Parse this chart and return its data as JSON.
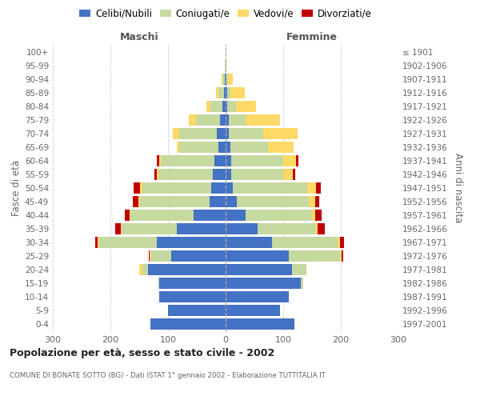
{
  "age_groups": [
    "0-4",
    "5-9",
    "10-14",
    "15-19",
    "20-24",
    "25-29",
    "30-34",
    "35-39",
    "40-44",
    "45-49",
    "50-54",
    "55-59",
    "60-64",
    "65-69",
    "70-74",
    "75-79",
    "80-84",
    "85-89",
    "90-94",
    "95-99",
    "100+"
  ],
  "birth_years": [
    "1997-2001",
    "1992-1996",
    "1987-1991",
    "1982-1986",
    "1977-1981",
    "1972-1976",
    "1967-1971",
    "1962-1966",
    "1957-1961",
    "1952-1956",
    "1947-1951",
    "1942-1946",
    "1937-1941",
    "1932-1936",
    "1927-1931",
    "1922-1926",
    "1917-1921",
    "1912-1916",
    "1907-1911",
    "1902-1906",
    "≤ 1901"
  ],
  "maschi": {
    "celibi": [
      130,
      100,
      115,
      115,
      135,
      95,
      120,
      85,
      55,
      28,
      25,
      22,
      20,
      12,
      15,
      10,
      5,
      3,
      2,
      0,
      0
    ],
    "coniugati": [
      0,
      0,
      0,
      2,
      10,
      35,
      100,
      95,
      110,
      120,
      120,
      95,
      92,
      68,
      65,
      42,
      22,
      10,
      3,
      1,
      0
    ],
    "vedovi": [
      0,
      0,
      0,
      0,
      5,
      2,
      2,
      2,
      2,
      3,
      3,
      3,
      3,
      5,
      12,
      12,
      6,
      3,
      2,
      0,
      0
    ],
    "divorziati": [
      0,
      0,
      0,
      0,
      0,
      2,
      5,
      10,
      8,
      10,
      12,
      4,
      5,
      0,
      0,
      0,
      0,
      0,
      0,
      0,
      0
    ]
  },
  "femmine": {
    "nubili": [
      120,
      95,
      110,
      130,
      115,
      110,
      80,
      55,
      35,
      20,
      12,
      10,
      10,
      8,
      5,
      5,
      3,
      3,
      2,
      0,
      0
    ],
    "coniugate": [
      0,
      0,
      0,
      5,
      25,
      90,
      115,
      100,
      115,
      125,
      130,
      90,
      90,
      65,
      60,
      30,
      15,
      5,
      2,
      0,
      0
    ],
    "vedove": [
      0,
      0,
      0,
      0,
      0,
      2,
      3,
      5,
      5,
      10,
      15,
      16,
      22,
      45,
      60,
      60,
      35,
      25,
      8,
      1,
      0
    ],
    "divorziate": [
      0,
      0,
      0,
      0,
      0,
      2,
      8,
      12,
      12,
      8,
      8,
      5,
      5,
      0,
      0,
      0,
      0,
      0,
      0,
      0,
      0
    ]
  },
  "colors": {
    "celibi": "#4472C4",
    "coniugati": "#C5D9A0",
    "vedovi": "#FFD966",
    "divorziati": "#C00000"
  },
  "xlim": 300,
  "title": "Popolazione per età, sesso e stato civile - 2002",
  "subtitle": "COMUNE DI BONATE SOTTO (BG) - Dati ISTAT 1° gennaio 2002 - Elaborazione TUTTITALIA.IT",
  "ylabel_left": "Fasce di età",
  "ylabel_right": "Anni di nascita",
  "legend_labels": [
    "Celibi/Nubili",
    "Coniugati/e",
    "Vedovi/e",
    "Divorziati/e"
  ],
  "bg_color": "#FFFFFF",
  "grid_color": "#CCCCCC",
  "maschi_label": "Maschi",
  "femmine_label": "Femmine"
}
